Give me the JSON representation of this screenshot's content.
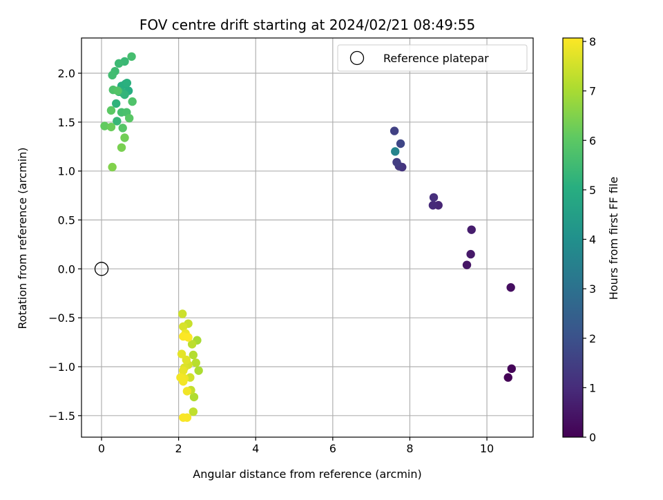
{
  "chart_data": {
    "type": "scatter",
    "title": "FOV centre drift starting at 2024/02/21 08:49:55",
    "xlabel": "Angular distance from reference (arcmin)",
    "ylabel": "Rotation from reference (arcmin)",
    "xlim": [
      -0.52,
      11.2
    ],
    "ylim": [
      -1.72,
      2.36
    ],
    "xticks": [
      0,
      2,
      4,
      6,
      8,
      10
    ],
    "yticks": [
      -1.5,
      -1.0,
      -0.5,
      0.0,
      0.5,
      1.0,
      1.5,
      2.0
    ],
    "xtick_labels": [
      "0",
      "2",
      "4",
      "6",
      "8",
      "10"
    ],
    "ytick_labels": [
      "−1.5",
      "−1.0",
      "−0.5",
      "0.0",
      "0.5",
      "1.0",
      "1.5",
      "2.0"
    ],
    "grid": true,
    "legend": {
      "position": "top-right",
      "entries": [
        "Reference platepar"
      ]
    },
    "reference_point": {
      "x": 0.0,
      "y": 0.0,
      "marker": "open-circle",
      "color": "#000000"
    },
    "colorbar": {
      "label": "Hours from first FF file",
      "range": [
        0,
        8.07
      ],
      "ticks": [
        0,
        1,
        2,
        3,
        4,
        5,
        6,
        7,
        8
      ],
      "tick_labels": [
        "0",
        "1",
        "2",
        "3",
        "4",
        "5",
        "6",
        "7",
        "8"
      ],
      "colormap": "viridis"
    },
    "points": [
      {
        "x": 10.55,
        "y": -1.11,
        "hours": 0.05
      },
      {
        "x": 10.64,
        "y": -1.02,
        "hours": 0.1
      },
      {
        "x": 10.62,
        "y": -0.19,
        "hours": 0.3
      },
      {
        "x": 9.48,
        "y": 0.04,
        "hours": 0.45
      },
      {
        "x": 9.58,
        "y": 0.15,
        "hours": 0.55
      },
      {
        "x": 9.6,
        "y": 0.4,
        "hours": 0.65
      },
      {
        "x": 8.74,
        "y": 0.65,
        "hours": 0.85
      },
      {
        "x": 8.6,
        "y": 0.65,
        "hours": 0.95
      },
      {
        "x": 8.62,
        "y": 0.73,
        "hours": 1.05
      },
      {
        "x": 7.8,
        "y": 1.04,
        "hours": 1.2
      },
      {
        "x": 7.72,
        "y": 1.05,
        "hours": 1.3
      },
      {
        "x": 7.66,
        "y": 1.09,
        "hours": 1.45
      },
      {
        "x": 7.6,
        "y": 1.41,
        "hours": 1.55
      },
      {
        "x": 7.76,
        "y": 1.28,
        "hours": 1.7
      },
      {
        "x": 7.62,
        "y": 1.2,
        "hours": 3.6
      },
      {
        "x": 0.62,
        "y": 1.89,
        "hours": 4.9
      },
      {
        "x": 0.7,
        "y": 1.82,
        "hours": 5.0
      },
      {
        "x": 0.52,
        "y": 1.87,
        "hours": 5.05
      },
      {
        "x": 0.66,
        "y": 1.9,
        "hours": 5.1
      },
      {
        "x": 0.55,
        "y": 1.8,
        "hours": 5.15
      },
      {
        "x": 0.38,
        "y": 1.69,
        "hours": 5.2
      },
      {
        "x": 0.6,
        "y": 1.78,
        "hours": 5.25
      },
      {
        "x": 0.45,
        "y": 1.81,
        "hours": 5.3
      },
      {
        "x": 0.4,
        "y": 1.51,
        "hours": 5.35
      },
      {
        "x": 0.6,
        "y": 2.12,
        "hours": 5.4
      },
      {
        "x": 0.45,
        "y": 2.1,
        "hours": 5.45
      },
      {
        "x": 0.35,
        "y": 2.02,
        "hours": 5.5
      },
      {
        "x": 0.28,
        "y": 1.98,
        "hours": 5.55
      },
      {
        "x": 0.78,
        "y": 2.17,
        "hours": 5.6
      },
      {
        "x": 0.52,
        "y": 1.6,
        "hours": 5.65
      },
      {
        "x": 0.65,
        "y": 1.6,
        "hours": 5.7
      },
      {
        "x": 0.3,
        "y": 1.83,
        "hours": 5.75
      },
      {
        "x": 0.8,
        "y": 1.71,
        "hours": 5.8
      },
      {
        "x": 0.42,
        "y": 1.82,
        "hours": 5.85
      },
      {
        "x": 0.55,
        "y": 1.44,
        "hours": 5.9
      },
      {
        "x": 0.72,
        "y": 1.54,
        "hours": 5.95
      },
      {
        "x": 0.25,
        "y": 1.62,
        "hours": 6.0
      },
      {
        "x": 0.08,
        "y": 1.46,
        "hours": 6.1
      },
      {
        "x": 0.25,
        "y": 1.45,
        "hours": 6.2
      },
      {
        "x": 0.6,
        "y": 1.34,
        "hours": 6.3
      },
      {
        "x": 0.52,
        "y": 1.24,
        "hours": 6.4
      },
      {
        "x": 0.28,
        "y": 1.04,
        "hours": 6.5
      },
      {
        "x": 2.48,
        "y": -0.73,
        "hours": 7.0
      },
      {
        "x": 2.52,
        "y": -1.04,
        "hours": 7.05
      },
      {
        "x": 2.4,
        "y": -1.31,
        "hours": 7.1
      },
      {
        "x": 2.38,
        "y": -0.88,
        "hours": 7.15
      },
      {
        "x": 2.45,
        "y": -0.96,
        "hours": 7.2
      },
      {
        "x": 2.35,
        "y": -0.77,
        "hours": 7.25
      },
      {
        "x": 2.38,
        "y": -1.46,
        "hours": 7.3
      },
      {
        "x": 2.32,
        "y": -1.24,
        "hours": 7.35
      },
      {
        "x": 2.25,
        "y": -0.56,
        "hours": 7.4
      },
      {
        "x": 2.1,
        "y": -0.46,
        "hours": 7.45
      },
      {
        "x": 2.3,
        "y": -1.11,
        "hours": 7.5
      },
      {
        "x": 2.25,
        "y": -0.98,
        "hours": 7.55
      },
      {
        "x": 2.12,
        "y": -0.59,
        "hours": 7.6
      },
      {
        "x": 2.15,
        "y": -1.01,
        "hours": 7.65
      },
      {
        "x": 2.2,
        "y": -0.93,
        "hours": 7.7
      },
      {
        "x": 2.08,
        "y": -0.87,
        "hours": 7.75
      },
      {
        "x": 2.12,
        "y": -1.04,
        "hours": 7.8
      },
      {
        "x": 2.18,
        "y": -0.66,
        "hours": 7.85
      },
      {
        "x": 2.15,
        "y": -1.12,
        "hours": 7.9
      },
      {
        "x": 2.22,
        "y": -1.25,
        "hours": 7.9
      },
      {
        "x": 2.05,
        "y": -1.11,
        "hours": 7.95
      },
      {
        "x": 2.12,
        "y": -1.15,
        "hours": 7.95
      },
      {
        "x": 2.22,
        "y": -1.52,
        "hours": 8.0
      },
      {
        "x": 2.12,
        "y": -1.52,
        "hours": 8.02
      },
      {
        "x": 2.12,
        "y": -0.69,
        "hours": 8.04
      },
      {
        "x": 2.25,
        "y": -0.7,
        "hours": 8.06
      }
    ]
  }
}
